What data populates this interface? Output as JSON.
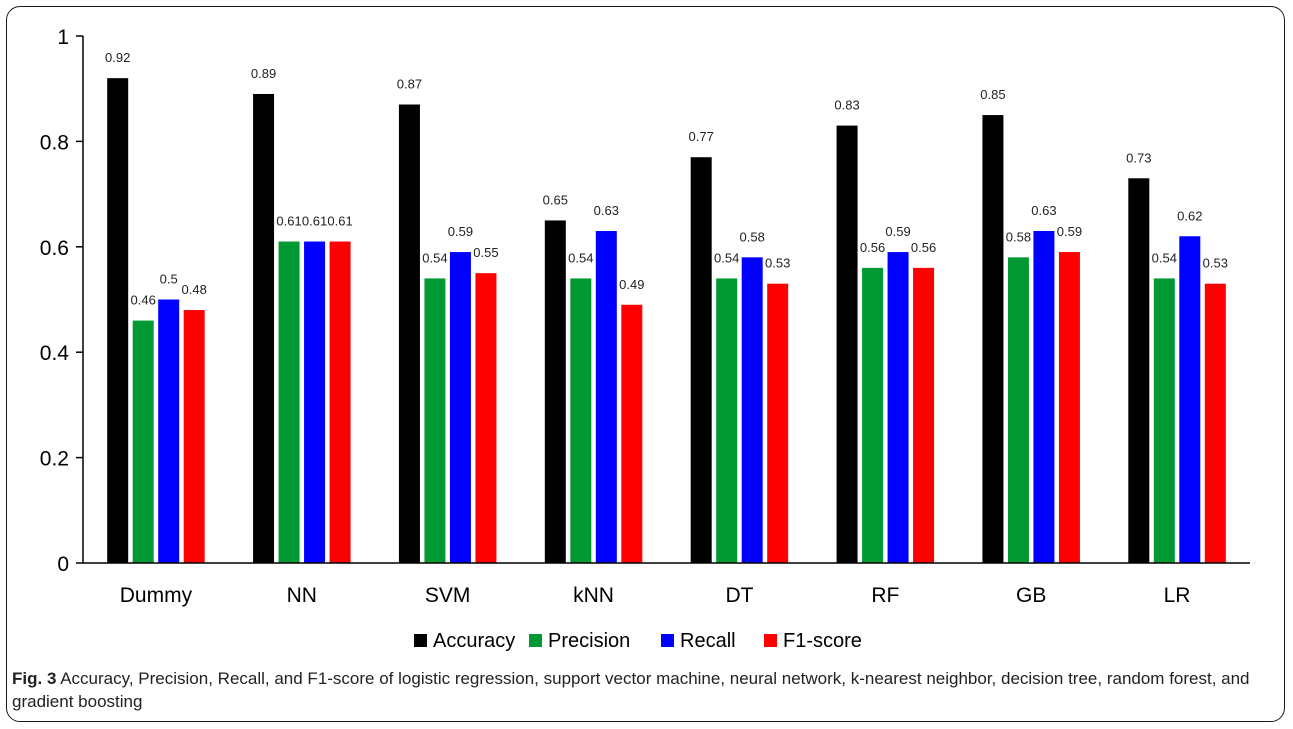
{
  "chart_data": {
    "type": "bar",
    "categories": [
      "Dummy",
      "NN",
      "SVM",
      "kNN",
      "DT",
      "RF",
      "GB",
      "LR"
    ],
    "series": [
      {
        "name": "Accuracy",
        "color": "#000000",
        "values": [
          0.92,
          0.89,
          0.87,
          0.65,
          0.77,
          0.83,
          0.85,
          0.73
        ],
        "labels": [
          "0.92",
          "0.89",
          "0.87",
          "0.65",
          "0.77",
          "0.83",
          "0.85",
          "0.73"
        ]
      },
      {
        "name": "Precision",
        "color": "#009933",
        "values": [
          0.46,
          0.61,
          0.54,
          0.54,
          0.54,
          0.56,
          0.58,
          0.54
        ],
        "labels": [
          "0.46",
          "0.61",
          "0.54",
          "0.54",
          "0.54",
          "0.56",
          "0.58",
          "0.54"
        ]
      },
      {
        "name": "Recall",
        "color": "#0000ff",
        "values": [
          0.5,
          0.61,
          0.59,
          0.63,
          0.58,
          0.59,
          0.63,
          0.62
        ],
        "labels": [
          "0.5",
          "0.61",
          "0.59",
          "0.63",
          "0.58",
          "0.59",
          "0.63",
          "0.62"
        ]
      },
      {
        "name": "F1-score",
        "color": "#ff0000",
        "values": [
          0.48,
          0.61,
          0.55,
          0.49,
          0.53,
          0.56,
          0.59,
          0.53
        ],
        "labels": [
          "0.48",
          "0.61",
          "0.55",
          "0.49",
          "0.53",
          "0.56",
          "0.59",
          "0.53"
        ]
      }
    ],
    "ylim": [
      0,
      1
    ],
    "yticks": [
      0,
      0.2,
      0.4,
      0.6,
      0.8,
      1
    ],
    "ytick_labels": [
      "0",
      "0.2",
      "0.4",
      "0.6",
      "0.8",
      "1"
    ],
    "grid": false,
    "legend_position": "bottom"
  },
  "caption": {
    "label": "Fig. 3",
    "text": "Accuracy, Precision, Recall, and F1-score of logistic regression, support vector machine, neural network, k-nearest neighbor, decision tree, random forest, and gradient boosting"
  }
}
